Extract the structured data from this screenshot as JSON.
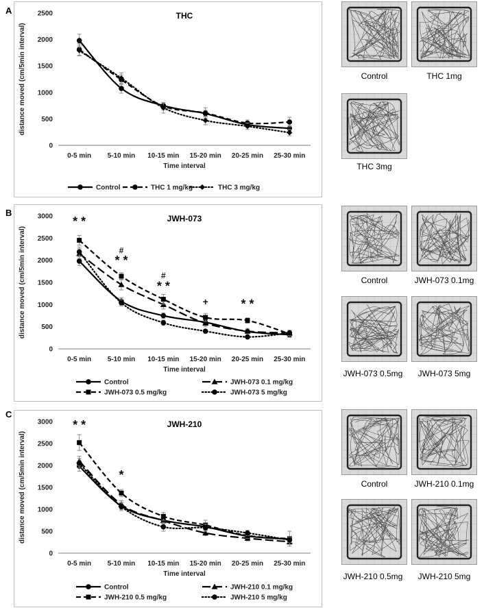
{
  "panels": [
    {
      "letter": "A"
    },
    {
      "letter": "B"
    },
    {
      "letter": "C"
    }
  ],
  "chart_data": [
    {
      "type": "line",
      "title": "THC",
      "xlabel": "Time interval",
      "ylabel": "distance moved (cm/5min interval)",
      "categories": [
        "0-5 min",
        "5-10 min",
        "10-15 min",
        "15-20 min",
        "20-25 min",
        "25-30 min"
      ],
      "ylim": [
        0,
        2500
      ],
      "yticks": [
        0,
        500,
        1000,
        1500,
        2000,
        2500
      ],
      "series": [
        {
          "name": "Control",
          "values": [
            1980,
            1075,
            750,
            600,
            390,
            320
          ],
          "err": [
            120,
            90,
            60,
            60,
            50,
            50
          ],
          "style": "solid",
          "marker": "circle"
        },
        {
          "name": "THC 1 mg/kg",
          "values": [
            1810,
            1240,
            740,
            610,
            420,
            440
          ],
          "err": [
            110,
            90,
            70,
            100,
            60,
            90
          ],
          "style": "dash",
          "marker": "circle"
        },
        {
          "name": "THC 3 mg/kg",
          "values": [
            1790,
            1270,
            710,
            470,
            360,
            240
          ],
          "err": [
            100,
            100,
            100,
            80,
            60,
            60
          ],
          "style": "dot",
          "marker": "diamond"
        }
      ],
      "annotations": []
    },
    {
      "type": "line",
      "title": "JWH-073",
      "xlabel": "Time interval",
      "ylabel": "distance moved (cm/5min interval)",
      "categories": [
        "0-5 min",
        "5-10 min",
        "10-15 min",
        "15-20 min",
        "20-25 min",
        "25-30 min"
      ],
      "ylim": [
        0,
        3000
      ],
      "yticks": [
        0,
        500,
        1000,
        1500,
        2000,
        2500,
        3000
      ],
      "series": [
        {
          "name": "Control",
          "values": [
            1980,
            1075,
            750,
            600,
            390,
            320
          ],
          "err": [
            100,
            80,
            60,
            60,
            50,
            60
          ],
          "style": "solid",
          "marker": "circle"
        },
        {
          "name": "JWH-073 0.1 mg/kg",
          "values": [
            2150,
            1450,
            1000,
            580,
            400,
            360
          ],
          "err": [
            110,
            120,
            100,
            80,
            60,
            60
          ],
          "style": "longdash",
          "marker": "triangle"
        },
        {
          "name": "JWH-073 0.5 mg/kg",
          "values": [
            2450,
            1640,
            1120,
            710,
            640,
            340
          ],
          "err": [
            110,
            80,
            110,
            90,
            60,
            80
          ],
          "style": "dash",
          "marker": "square"
        },
        {
          "name": "JWH-073 5 mg/kg",
          "values": [
            2190,
            1040,
            590,
            400,
            270,
            360
          ],
          "err": [
            110,
            70,
            60,
            40,
            40,
            60
          ],
          "style": "dot",
          "marker": "circle"
        }
      ],
      "annotations": [
        {
          "x": 0,
          "y": 2780,
          "text": "* *",
          "size": 18
        },
        {
          "x": 1,
          "y": 2160,
          "text": "#",
          "size": 12
        },
        {
          "x": 1,
          "y": 1900,
          "text": "* *",
          "size": 18
        },
        {
          "x": 2,
          "y": 1590,
          "text": "#",
          "size": 12
        },
        {
          "x": 2,
          "y": 1320,
          "text": "* *",
          "size": 18
        },
        {
          "x": 3,
          "y": 990,
          "text": "+",
          "size": 14
        },
        {
          "x": 4,
          "y": 920,
          "text": "* *",
          "size": 18
        }
      ]
    },
    {
      "type": "line",
      "title": "JWH-210",
      "xlabel": "Time interval",
      "ylabel": "distance moved (cm/5min interval)",
      "categories": [
        "0-5 min",
        "5-10 min",
        "10-15 min",
        "15-20 min",
        "20-25 min",
        "25-30 min"
      ],
      "ylim": [
        0,
        3000
      ],
      "yticks": [
        0,
        500,
        1000,
        1500,
        2000,
        2500,
        3000
      ],
      "series": [
        {
          "name": "Control",
          "values": [
            1980,
            1075,
            750,
            600,
            390,
            320
          ],
          "err": [
            110,
            80,
            60,
            60,
            50,
            50
          ],
          "style": "solid",
          "marker": "circle"
        },
        {
          "name": "JWH-210 0.1 mg/kg",
          "values": [
            2100,
            1110,
            740,
            460,
            340,
            260
          ],
          "err": [
            110,
            90,
            70,
            60,
            60,
            60
          ],
          "style": "longdash",
          "marker": "triangle"
        },
        {
          "name": "JWH-210 0.5 mg/kg",
          "values": [
            2520,
            1370,
            840,
            640,
            400,
            330
          ],
          "err": [
            180,
            80,
            90,
            110,
            60,
            170
          ],
          "style": "dash",
          "marker": "square"
        },
        {
          "name": "JWH-210 5 mg/kg",
          "values": [
            2050,
            1060,
            600,
            580,
            460,
            300
          ],
          "err": [
            110,
            90,
            100,
            80,
            60,
            60
          ],
          "style": "dot",
          "marker": "circle"
        }
      ],
      "annotations": [
        {
          "x": 0,
          "y": 2830,
          "text": "* *",
          "size": 18
        },
        {
          "x": 1,
          "y": 1690,
          "text": "*",
          "size": 18
        }
      ]
    }
  ],
  "thumbnails": [
    {
      "caption": "Control"
    },
    {
      "caption": "THC 1mg"
    },
    {
      "caption": "THC 3mg"
    },
    {
      "caption": "Control"
    },
    {
      "caption": "JWH-073 0.1mg"
    },
    {
      "caption": "JWH-073 0.5mg"
    },
    {
      "caption": "JWH-073 5mg"
    },
    {
      "caption": "Control"
    },
    {
      "caption": "JWH-210 0.1mg"
    },
    {
      "caption": "JWH-210 0.5mg"
    },
    {
      "caption": "JWH-210 5mg"
    }
  ]
}
